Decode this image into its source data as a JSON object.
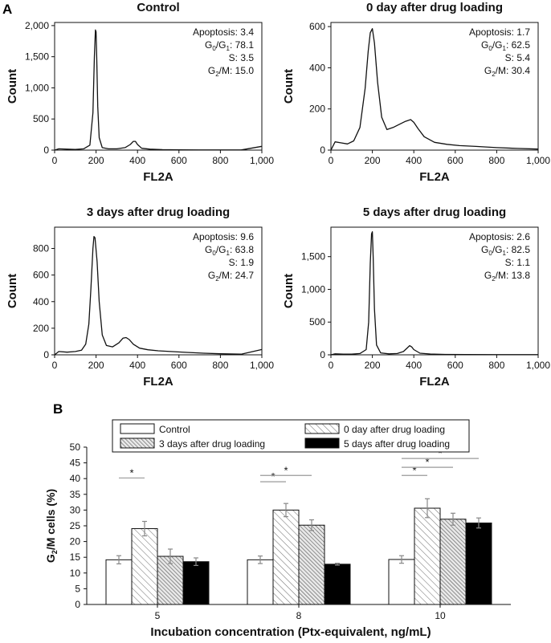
{
  "panel_labels": {
    "a": "A",
    "b": "B"
  },
  "colors": {
    "ink": "#111111",
    "grid": "#9a9a9a",
    "solid": "#000000",
    "white": "#ffffff",
    "bracket": "#9a9a9a"
  },
  "chart_data": [
    {
      "type": "line",
      "title": "Control",
      "xlabel": "FL2A",
      "ylabel": "Count",
      "xlim": [
        0,
        1000
      ],
      "ylim": [
        0,
        2050
      ],
      "xticks": [
        "0",
        "200",
        "400",
        "600",
        "800",
        "1,000"
      ],
      "xtick_values": [
        0,
        200,
        400,
        600,
        800,
        1000
      ],
      "yticks": [
        "0",
        "500",
        "1,000",
        "1,500",
        "2,000"
      ],
      "ytick_values": [
        0,
        500,
        1000,
        1500,
        2000
      ],
      "stats": [
        {
          "label": "Apoptosis: 3.4"
        },
        {
          "pre": "G",
          "sub": "0",
          "mid": "/G",
          "sub2": "1",
          "post": ": 78.1"
        },
        {
          "label": "S: 3.5"
        },
        {
          "pre": "G",
          "sub": "2",
          "post": "/M: 15.0"
        }
      ],
      "x": [
        0,
        20,
        60,
        100,
        140,
        170,
        185,
        192,
        197,
        200,
        203,
        208,
        215,
        230,
        260,
        300,
        340,
        365,
        380,
        390,
        400,
        420,
        460,
        520,
        600,
        700,
        800,
        900,
        1000
      ],
      "y": [
        0,
        20,
        15,
        10,
        20,
        80,
        600,
        1500,
        1930,
        1900,
        1500,
        700,
        200,
        40,
        20,
        20,
        40,
        90,
        140,
        140,
        90,
        30,
        15,
        8,
        5,
        3,
        2,
        2,
        60
      ]
    },
    {
      "type": "line",
      "title": "0 day after drug loading",
      "xlabel": "FL2A",
      "ylabel": "Count",
      "xlim": [
        0,
        1000
      ],
      "ylim": [
        0,
        620
      ],
      "xticks": [
        "0",
        "200",
        "400",
        "600",
        "800",
        "1,000"
      ],
      "xtick_values": [
        0,
        200,
        400,
        600,
        800,
        1000
      ],
      "yticks": [
        "0",
        "200",
        "400",
        "600"
      ],
      "yticks_values": [],
      "ytick_values": [
        0,
        200,
        400,
        600
      ],
      "stats": [
        {
          "label": "Apoptosis: 1.7"
        },
        {
          "pre": "G",
          "sub": "0",
          "mid": "/G",
          "sub2": "1",
          "post": ": 62.5"
        },
        {
          "label": "S: 5.4"
        },
        {
          "pre": "G",
          "sub": "2",
          "post": "/M: 30.4"
        }
      ],
      "x": [
        0,
        20,
        50,
        80,
        110,
        140,
        165,
        180,
        190,
        200,
        210,
        225,
        245,
        270,
        300,
        330,
        360,
        385,
        400,
        420,
        450,
        500,
        560,
        620,
        700,
        800,
        900,
        1000
      ],
      "y": [
        0,
        40,
        35,
        30,
        45,
        110,
        300,
        480,
        570,
        590,
        520,
        330,
        160,
        100,
        110,
        125,
        140,
        148,
        135,
        105,
        65,
        38,
        28,
        22,
        18,
        12,
        8,
        5
      ]
    },
    {
      "type": "line",
      "title": "3 days after drug loading",
      "xlabel": "FL2A",
      "ylabel": "Count",
      "xlim": [
        0,
        1000
      ],
      "ylim": [
        0,
        960
      ],
      "xticks": [
        "0",
        "200",
        "400",
        "600",
        "800",
        "1,000"
      ],
      "xtick_values": [
        0,
        200,
        400,
        600,
        800,
        1000
      ],
      "yticks": [
        "0",
        "200",
        "400",
        "600",
        "800"
      ],
      "ytick_values": [
        0,
        200,
        400,
        600,
        800
      ],
      "stats": [
        {
          "label": "Apoptosis: 9.6"
        },
        {
          "pre": "G",
          "sub": "0",
          "mid": "/G",
          "sub2": "1",
          "post": ": 63.8"
        },
        {
          "label": "S: 1.9"
        },
        {
          "pre": "G",
          "sub": "2",
          "post": "/M: 24.7"
        }
      ],
      "x": [
        0,
        20,
        60,
        100,
        130,
        150,
        165,
        175,
        185,
        190,
        195,
        205,
        215,
        230,
        250,
        280,
        310,
        330,
        345,
        360,
        380,
        410,
        450,
        500,
        560,
        640,
        720,
        800,
        900,
        1000
      ],
      "y": [
        0,
        25,
        20,
        25,
        35,
        80,
        230,
        500,
        800,
        890,
        880,
        700,
        400,
        150,
        70,
        60,
        90,
        125,
        130,
        115,
        80,
        50,
        38,
        30,
        25,
        18,
        12,
        8,
        5,
        40
      ]
    },
    {
      "type": "line",
      "title": "5 days after drug loading",
      "xlabel": "FL2A",
      "ylabel": "Count",
      "xlim": [
        0,
        1000
      ],
      "ylim": [
        0,
        1950
      ],
      "xticks": [
        "0",
        "200",
        "400",
        "600",
        "800",
        "1,000"
      ],
      "xtick_values": [
        0,
        200,
        400,
        600,
        800,
        1000
      ],
      "yticks": [
        "0",
        "500",
        "1,000",
        "1,500"
      ],
      "ytick_values": [
        0,
        500,
        1000,
        1500
      ],
      "stats": [
        {
          "label": "Apoptosis: 2.6"
        },
        {
          "pre": "G",
          "sub": "0",
          "mid": "/G",
          "sub2": "1",
          "post": ": 82.5"
        },
        {
          "label": "S: 1.1"
        },
        {
          "pre": "G",
          "sub": "2",
          "post": "/M: 13.8"
        }
      ],
      "x": [
        0,
        20,
        60,
        100,
        140,
        170,
        182,
        190,
        196,
        200,
        204,
        210,
        220,
        240,
        280,
        320,
        350,
        370,
        380,
        390,
        400,
        430,
        480,
        550,
        650,
        800,
        1000
      ],
      "y": [
        0,
        15,
        10,
        10,
        20,
        80,
        500,
        1400,
        1850,
        1880,
        1500,
        700,
        150,
        30,
        15,
        20,
        50,
        110,
        140,
        120,
        80,
        25,
        12,
        6,
        4,
        2,
        2
      ]
    },
    {
      "type": "bar",
      "xlabel": "Incubation concentration (Ptx-equivalent, ng/mL)",
      "ylabel": {
        "pre": "G",
        "sub": "2",
        "post": "/M cells (%)"
      },
      "ylim": [
        0,
        50
      ],
      "yticks": [
        "0",
        "5",
        "10",
        "15",
        "20",
        "25",
        "30",
        "35",
        "40",
        "45",
        "50"
      ],
      "ytick_values": [
        0,
        5,
        10,
        15,
        20,
        25,
        30,
        35,
        40,
        45,
        50
      ],
      "categories": [
        "5",
        "8",
        "10"
      ],
      "series": [
        {
          "name": "Control",
          "style": "white",
          "values": [
            14.2,
            14.2,
            14.3
          ],
          "errors": [
            1.3,
            1.2,
            1.2
          ]
        },
        {
          "name": "0 day after drug loading",
          "style": "hatch-light",
          "values": [
            24.1,
            30.0,
            30.6
          ],
          "errors": [
            2.3,
            2.1,
            3.0
          ]
        },
        {
          "name": "3 days after drug loading",
          "style": "hatch-dense",
          "values": [
            15.3,
            25.2,
            27.1
          ],
          "errors": [
            2.3,
            1.7,
            1.9
          ]
        },
        {
          "name": "5 days after drug loading",
          "style": "black",
          "values": [
            13.6,
            12.8,
            25.9
          ],
          "errors": [
            1.2,
            0.3,
            1.6
          ]
        }
      ],
      "significance": [
        {
          "category": 0,
          "from": 0,
          "to": 1,
          "y": 40.2,
          "label": "*"
        },
        {
          "category": 1,
          "from": 0,
          "to": 1,
          "y": 39.0,
          "label": "*"
        },
        {
          "category": 1,
          "from": 0,
          "to": 2,
          "y": 41.0,
          "label": "*"
        },
        {
          "category": 2,
          "from": 0,
          "to": 1,
          "y": 41.0,
          "label": "*"
        },
        {
          "category": 2,
          "from": 0,
          "to": 2,
          "y": 43.6,
          "label": "*"
        },
        {
          "category": 2,
          "from": 0,
          "to": 3,
          "y": 46.4,
          "label": "*"
        }
      ]
    }
  ]
}
